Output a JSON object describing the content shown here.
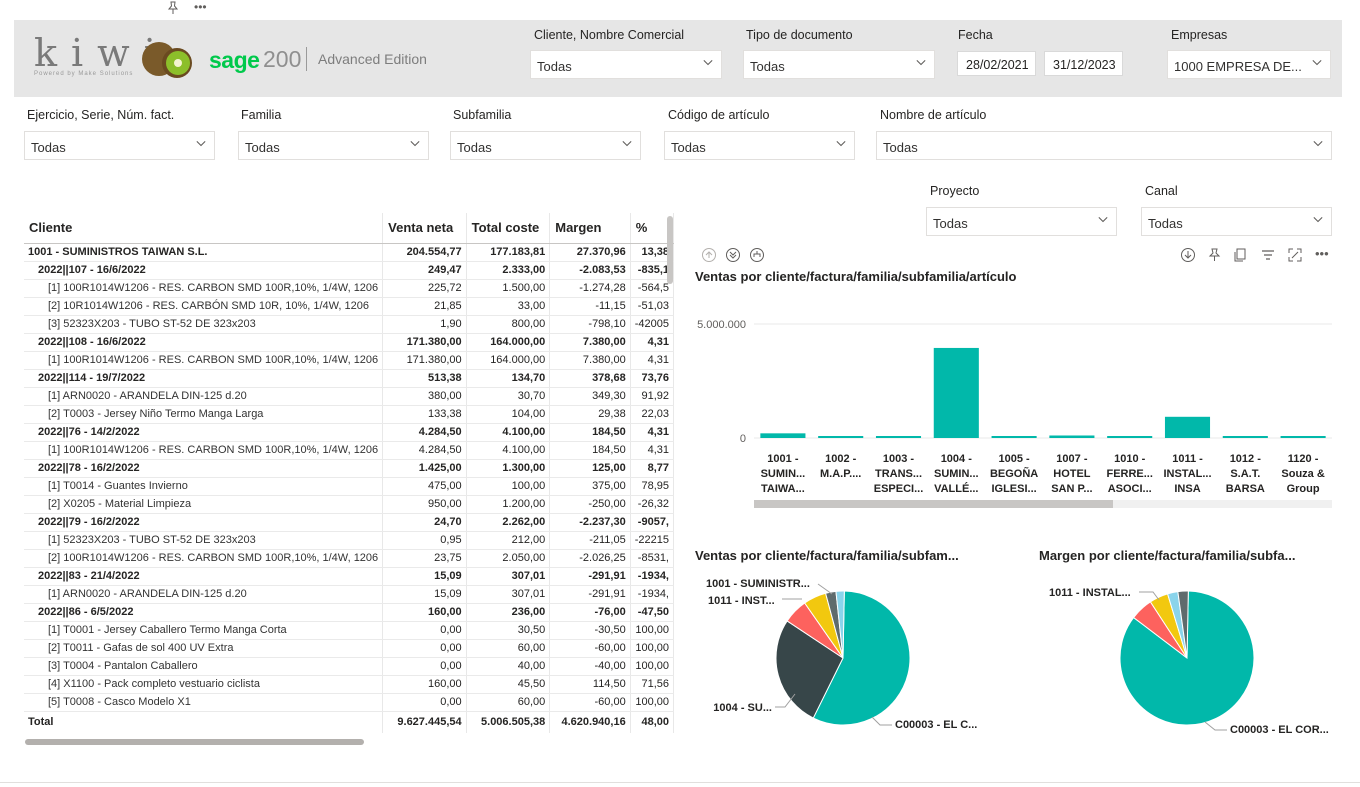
{
  "header": {
    "logo_text": "kiwi",
    "logo_tagline": "Powered by Make Solutions",
    "sage_brand": "sage",
    "sage_version": "200",
    "sage_edition": "Advanced Edition"
  },
  "filters_top": {
    "cliente": {
      "label": "Cliente, Nombre Comercial",
      "value": "Todas"
    },
    "tipo_documento": {
      "label": "Tipo de documento",
      "value": "Todas"
    },
    "fecha": {
      "label": "Fecha",
      "from": "28/02/2021",
      "to": "31/12/2023"
    },
    "empresas": {
      "label": "Empresas",
      "value": "1000 EMPRESA DE..."
    }
  },
  "filters_row2": {
    "ejercicio": {
      "label": "Ejercicio, Serie, Núm. fact.",
      "value": "Todas"
    },
    "familia": {
      "label": "Familia",
      "value": "Todas"
    },
    "subfamilia": {
      "label": "Subfamilia",
      "value": "Todas"
    },
    "codigo": {
      "label": "Código de artículo",
      "value": "Todas"
    },
    "nombre": {
      "label": "Nombre de artículo",
      "value": "Todas"
    }
  },
  "filters_row3": {
    "proyecto": {
      "label": "Proyecto",
      "value": "Todas"
    },
    "canal": {
      "label": "Canal",
      "value": "Todas"
    }
  },
  "table": {
    "columns": [
      "Cliente",
      "Venta neta",
      "Total coste",
      "Margen",
      "%"
    ],
    "rows": [
      {
        "level": 0,
        "bold": true,
        "cells": [
          "1001 -  SUMINISTROS TAIWAN S.L.",
          "204.554,77",
          "177.183,81",
          "27.370,96",
          "13,38"
        ]
      },
      {
        "level": 1,
        "bold": true,
        "cells": [
          "2022||107 - 16/6/2022",
          "249,47",
          "2.333,00",
          "-2.083,53",
          "-835,1"
        ]
      },
      {
        "level": 2,
        "bold": false,
        "cells": [
          "[1] 100R1014W1206 - RES. CARBON SMD 100R,10%, 1/4W, 1206",
          "225,72",
          "1.500,00",
          "-1.274,28",
          "-564,5"
        ]
      },
      {
        "level": 2,
        "bold": false,
        "cells": [
          "[2] 10R1014W1206 - RES. CARBÓN SMD 10R, 10%, 1/4W, 1206",
          "21,85",
          "33,00",
          "-11,15",
          "-51,03"
        ]
      },
      {
        "level": 2,
        "bold": false,
        "cells": [
          "[3] 52323X203 - TUBO ST-52 DE 323x203",
          "1,90",
          "800,00",
          "-798,10",
          "-42005"
        ]
      },
      {
        "level": 1,
        "bold": true,
        "cells": [
          "2022||108 - 16/6/2022",
          "171.380,00",
          "164.000,00",
          "7.380,00",
          "4,31"
        ]
      },
      {
        "level": 2,
        "bold": false,
        "cells": [
          "[1] 100R1014W1206 - RES. CARBON SMD 100R,10%, 1/4W, 1206",
          "171.380,00",
          "164.000,00",
          "7.380,00",
          "4,31"
        ]
      },
      {
        "level": 1,
        "bold": true,
        "cells": [
          "2022||114 - 19/7/2022",
          "513,38",
          "134,70",
          "378,68",
          "73,76"
        ]
      },
      {
        "level": 2,
        "bold": false,
        "cells": [
          "[1] ARN0020 - ARANDELA DIN-125 d.20",
          "380,00",
          "30,70",
          "349,30",
          "91,92"
        ]
      },
      {
        "level": 2,
        "bold": false,
        "cells": [
          "[2] T0003 - Jersey Niño Termo Manga Larga",
          "133,38",
          "104,00",
          "29,38",
          "22,03"
        ]
      },
      {
        "level": 1,
        "bold": true,
        "cells": [
          "2022||76 - 14/2/2022",
          "4.284,50",
          "4.100,00",
          "184,50",
          "4,31"
        ]
      },
      {
        "level": 2,
        "bold": false,
        "cells": [
          "[1] 100R1014W1206 - RES. CARBON SMD 100R,10%, 1/4W, 1206",
          "4.284,50",
          "4.100,00",
          "184,50",
          "4,31"
        ]
      },
      {
        "level": 1,
        "bold": true,
        "cells": [
          "2022||78 - 16/2/2022",
          "1.425,00",
          "1.300,00",
          "125,00",
          "8,77"
        ]
      },
      {
        "level": 2,
        "bold": false,
        "cells": [
          "[1] T0014 - Guantes Invierno",
          "475,00",
          "100,00",
          "375,00",
          "78,95"
        ]
      },
      {
        "level": 2,
        "bold": false,
        "cells": [
          "[2] X0205 - Material Limpieza",
          "950,00",
          "1.200,00",
          "-250,00",
          "-26,32"
        ]
      },
      {
        "level": 1,
        "bold": true,
        "cells": [
          "2022||79 - 16/2/2022",
          "24,70",
          "2.262,00",
          "-2.237,30",
          "-9057,"
        ]
      },
      {
        "level": 2,
        "bold": false,
        "cells": [
          "[1] 52323X203 - TUBO ST-52 DE 323x203",
          "0,95",
          "212,00",
          "-211,05",
          "-22215"
        ]
      },
      {
        "level": 2,
        "bold": false,
        "cells": [
          "[2] 100R1014W1206 - RES. CARBON SMD 100R,10%, 1/4W, 1206",
          "23,75",
          "2.050,00",
          "-2.026,25",
          "-8531,"
        ]
      },
      {
        "level": 1,
        "bold": true,
        "cells": [
          "2022||83 - 21/4/2022",
          "15,09",
          "307,01",
          "-291,91",
          "-1934,"
        ]
      },
      {
        "level": 2,
        "bold": false,
        "cells": [
          "[1] ARN0020 - ARANDELA DIN-125 d.20",
          "15,09",
          "307,01",
          "-291,91",
          "-1934,"
        ]
      },
      {
        "level": 1,
        "bold": true,
        "cells": [
          "2022||86 - 6/5/2022",
          "160,00",
          "236,00",
          "-76,00",
          "-47,50"
        ]
      },
      {
        "level": 2,
        "bold": false,
        "cells": [
          "[1] T0001 - Jersey Caballero Termo Manga Corta",
          "0,00",
          "30,50",
          "-30,50",
          "100,00"
        ]
      },
      {
        "level": 2,
        "bold": false,
        "cells": [
          "[2] T0011 - Gafas de sol 400 UV Extra",
          "0,00",
          "60,00",
          "-60,00",
          "100,00"
        ]
      },
      {
        "level": 2,
        "bold": false,
        "cells": [
          "[3] T0004 - Pantalon Caballero",
          "0,00",
          "40,00",
          "-40,00",
          "100,00"
        ]
      },
      {
        "level": 2,
        "bold": false,
        "cells": [
          "[4] X1100 - Pack completo vestuario ciclista",
          "160,00",
          "45,50",
          "114,50",
          "71,56"
        ]
      },
      {
        "level": 2,
        "bold": false,
        "cells": [
          "[5] T0008 - Casco Modelo X1",
          "0,00",
          "60,00",
          "-60,00",
          "100,00"
        ]
      }
    ],
    "total": [
      "Total",
      "9.627.445,54",
      "5.006.505,38",
      "4.620.940,16",
      "48,00"
    ]
  },
  "colors": {
    "teal": "#01b8aa",
    "dark": "#374649",
    "red": "#fd625e",
    "yellow": "#f2c80f",
    "grey": "#5f6b6d",
    "lightblue": "#8ad4eb"
  },
  "chart_data": [
    {
      "type": "bar",
      "title": "Ventas por cliente/factura/familia/subfamilia/artículo",
      "categories": [
        [
          "1001 -",
          "SUMIN...",
          "TAIWA..."
        ],
        [
          "1002 -",
          "M.A.P...."
        ],
        [
          "1003 -",
          "TRANS...",
          "ESPECI..."
        ],
        [
          "1004 -",
          "SUMIN...",
          "VALLÉ..."
        ],
        [
          "1005 -",
          "BEGOÑA",
          "IGLESI..."
        ],
        [
          "1007 -",
          "HOTEL",
          "SAN P..."
        ],
        [
          "1010 -",
          "FERRE...",
          "ASOCI..."
        ],
        [
          "1011 -",
          "INSTAL...",
          "INSA"
        ],
        [
          "1012 -",
          "S.A.T.",
          "BARSA"
        ],
        [
          "1120 -",
          "Souza &",
          "Group"
        ]
      ],
      "values": [
        204554.77,
        40000,
        30000,
        3950000,
        25000,
        110000,
        20000,
        930000,
        20000,
        30000
      ],
      "yticks": [
        "5.000.000",
        "0"
      ],
      "ylim": [
        0,
        7400000
      ]
    },
    {
      "type": "pie",
      "title": "Ventas por cliente/factura/familia/subfam...",
      "slices": [
        {
          "label": "C00003 - EL C...",
          "value": 57,
          "color": "#01b8aa"
        },
        {
          "label": "1004 - SU...",
          "value": 27,
          "color": "#374649"
        },
        {
          "label": "",
          "value": 6,
          "color": "#fd625e"
        },
        {
          "label": "1011 - INST...",
          "value": 5.5,
          "color": "#f2c80f"
        },
        {
          "label": "1001 - SUMINISTR...",
          "value": 2.5,
          "color": "#5f6b6d"
        },
        {
          "label": "",
          "value": 2,
          "color": "#8ad4eb"
        }
      ]
    },
    {
      "type": "pie",
      "title": "Margen por cliente/factura/familia/subfa...",
      "slices": [
        {
          "label": "C00003 - EL COR...",
          "value": 85,
          "color": "#01b8aa"
        },
        {
          "label": "",
          "value": 5.5,
          "color": "#fd625e"
        },
        {
          "label": "1011 - INSTAL...",
          "value": 4.5,
          "color": "#f2c80f"
        },
        {
          "label": "",
          "value": 2.5,
          "color": "#8ad4eb"
        },
        {
          "label": "",
          "value": 2.5,
          "color": "#5f6b6d"
        }
      ]
    }
  ]
}
